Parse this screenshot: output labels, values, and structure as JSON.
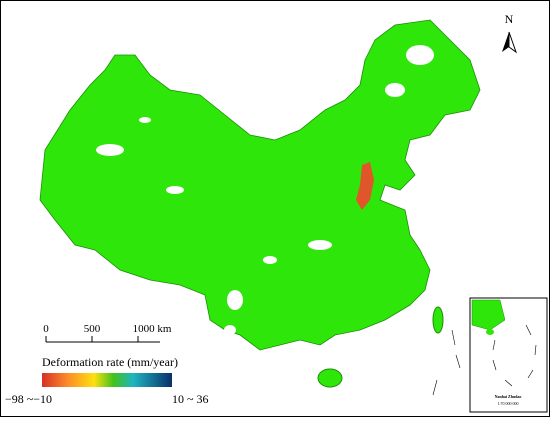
{
  "map": {
    "north_label": "N",
    "scale_bar": {
      "ticks": [
        "0",
        "500",
        "1000 km"
      ]
    },
    "legend": {
      "title": "Deformation rate (mm/year)",
      "min_label": "−98 ~−10",
      "max_label": "10 ~ 36"
    },
    "inset": {
      "title": "Nanhai Zhudao",
      "scale": "1:70 000 000"
    }
  }
}
